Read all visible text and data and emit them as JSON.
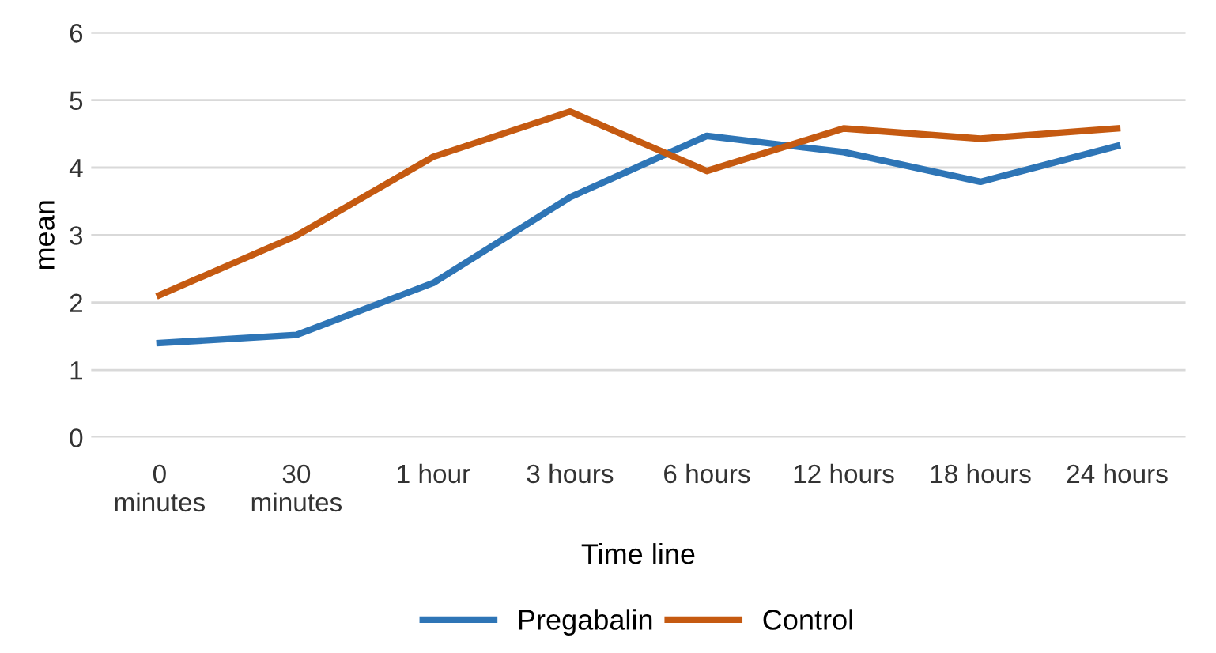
{
  "chart_data": {
    "type": "line",
    "xlabel": "Time line",
    "ylabel": "mean",
    "categories": [
      "0\nminutes",
      "30\nminutes",
      "1 hour",
      "3 hours",
      "6 hours",
      "12 hours",
      "18 hours",
      "24 hours"
    ],
    "series": [
      {
        "name": "Pregabalin",
        "color": "#2e75b6",
        "values": [
          1.4,
          1.52,
          2.29,
          3.56,
          4.47,
          4.23,
          3.79,
          4.32
        ]
      },
      {
        "name": "Control",
        "color": "#c55a11",
        "values": [
          2.11,
          2.99,
          4.16,
          4.83,
          3.95,
          4.58,
          4.43,
          4.58
        ]
      }
    ],
    "ylim": [
      0,
      6
    ],
    "yticks": [
      0,
      1,
      2,
      3,
      4,
      5,
      6
    ],
    "grid": "y",
    "legend": "bottom",
    "marker": "none",
    "line_style": "solid"
  }
}
